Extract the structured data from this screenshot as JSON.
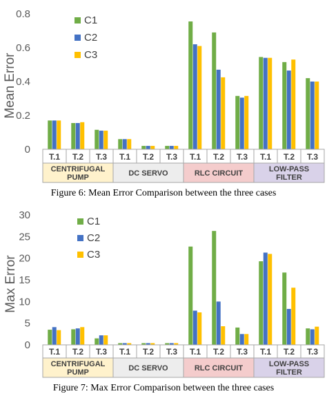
{
  "chart_data": [
    {
      "type": "bar",
      "caption": "Figure 6: Mean Error Comparison between the three cases",
      "ylabel": "Mean Error",
      "ylim": [
        0,
        0.8
      ],
      "yticks": [
        "0",
        "0.2",
        "0.4",
        "0.6",
        "0.8"
      ],
      "categories": [
        "T.1",
        "T.2",
        "T.3",
        "T.1",
        "T.2",
        "T.3",
        "T.1",
        "T.2",
        "T.3",
        "T.1",
        "T.2",
        "T.3"
      ],
      "groups": [
        {
          "label": "CENTRIFUGAL PUMP",
          "lines": [
            "CENTRIFUGAL",
            "PUMP"
          ],
          "color": "#fff2cc"
        },
        {
          "label": "DC SERVO",
          "lines": [
            "DC SERVO"
          ],
          "color": "#ededed"
        },
        {
          "label": "RLC CIRCUIT",
          "lines": [
            "RLC CIRCUIT"
          ],
          "color": "#f4cccc"
        },
        {
          "label": "LOW-PASS FILTER",
          "lines": [
            "LOW-PASS",
            "FILTER"
          ],
          "color": "#d9d2e9"
        }
      ],
      "series": [
        {
          "name": "C1",
          "color": "#70ad47",
          "values": [
            0.17,
            0.155,
            0.115,
            0.06,
            0.02,
            0.02,
            0.755,
            0.69,
            0.315,
            0.545,
            0.515,
            0.42
          ]
        },
        {
          "name": "C2",
          "color": "#4472c4",
          "values": [
            0.17,
            0.155,
            0.11,
            0.06,
            0.02,
            0.02,
            0.62,
            0.47,
            0.305,
            0.54,
            0.465,
            0.4
          ]
        },
        {
          "name": "C3",
          "color": "#ffc000",
          "values": [
            0.17,
            0.16,
            0.11,
            0.06,
            0.02,
            0.02,
            0.61,
            0.425,
            0.315,
            0.54,
            0.53,
            0.4
          ]
        }
      ],
      "legend": "top-left"
    },
    {
      "type": "bar",
      "caption": "Figure 7: Max Error Comparison between the three cases",
      "ylabel": "Max Error",
      "ylim": [
        0,
        30
      ],
      "yticks": [
        "0",
        "5",
        "10",
        "15",
        "20",
        "25",
        "30"
      ],
      "categories": [
        "T.1",
        "T.2",
        "T.3",
        "T.1",
        "T.2",
        "T.3",
        "T.1",
        "T.2",
        "T.3",
        "T.1",
        "T.2",
        "T.3"
      ],
      "groups": [
        {
          "label": "CENTRIFUGAL PUMP",
          "lines": [
            "CENTRIFUGAL",
            "PUMP"
          ],
          "color": "#fff2cc"
        },
        {
          "label": "DC SERVO",
          "lines": [
            "DC SERVO"
          ],
          "color": "#ededed"
        },
        {
          "label": "RLC CIRCUIT",
          "lines": [
            "RLC CIRCUIT"
          ],
          "color": "#f4cccc"
        },
        {
          "label": "LOW-PASS FILTER",
          "lines": [
            "LOW-PASS",
            "FILTER"
          ],
          "color": "#d9d2e9"
        }
      ],
      "series": [
        {
          "name": "C1",
          "color": "#70ad47",
          "values": [
            3.5,
            3.6,
            1.5,
            0.4,
            0.4,
            0.4,
            22.7,
            26.3,
            4.0,
            19.3,
            16.7,
            3.8
          ]
        },
        {
          "name": "C2",
          "color": "#4472c4",
          "values": [
            4.1,
            3.8,
            2.2,
            0.4,
            0.4,
            0.4,
            7.9,
            10.0,
            2.5,
            21.3,
            8.3,
            3.6
          ]
        },
        {
          "name": "C3",
          "color": "#ffc000",
          "values": [
            3.4,
            4.1,
            2.2,
            0.4,
            0.4,
            0.4,
            7.5,
            4.3,
            2.5,
            21.0,
            13.2,
            4.2
          ]
        }
      ],
      "legend": "top-left"
    }
  ]
}
